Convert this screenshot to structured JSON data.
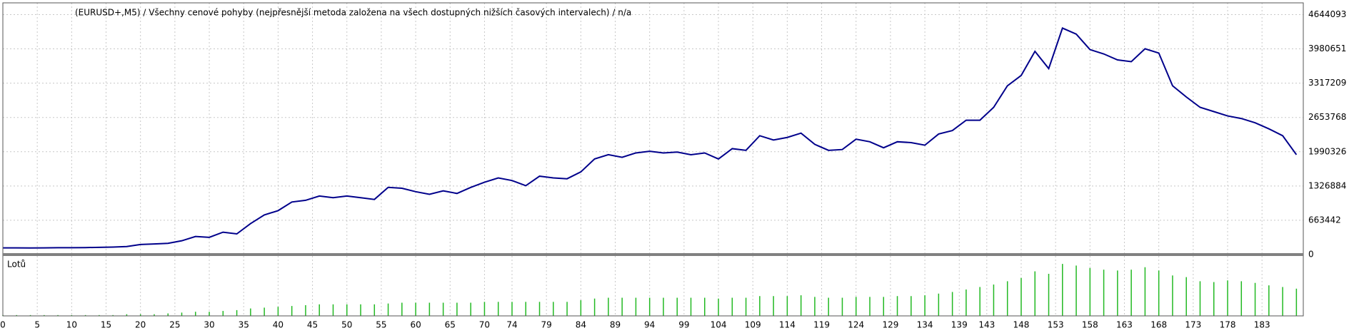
{
  "chart_data": [
    {
      "type": "line",
      "title": "(EURUSD+,M5) / Všechny cenové pohyby (nejpřesnější metoda založena na všech dostupných nižších časových intervalech) / n/a",
      "x": [
        0,
        2,
        4,
        6,
        8,
        10,
        12,
        14,
        16,
        18,
        20,
        22,
        24,
        26,
        28,
        30,
        32,
        34,
        36,
        38,
        40,
        42,
        44,
        46,
        48,
        50,
        52,
        54,
        56,
        58,
        60,
        62,
        64,
        66,
        68,
        70,
        72,
        74,
        76,
        78,
        80,
        82,
        84,
        86,
        88,
        90,
        92,
        94,
        96,
        98,
        100,
        102,
        104,
        106,
        108,
        110,
        112,
        114,
        116,
        118,
        120,
        122,
        124,
        126,
        128,
        130,
        132,
        134,
        136,
        138,
        140,
        142,
        144,
        146,
        148,
        150,
        152,
        154,
        156,
        158,
        160,
        162,
        164,
        166,
        168,
        170,
        172,
        174,
        176,
        178,
        180,
        182,
        184,
        186,
        188
      ],
      "series": [
        {
          "color": "#00008b",
          "values": [
            130000,
            130000,
            128000,
            130000,
            132000,
            133000,
            135000,
            140000,
            145000,
            155000,
            195000,
            205000,
            217000,
            267000,
            350000,
            333000,
            433000,
            400000,
            600000,
            767000,
            850000,
            1017000,
            1050000,
            1133000,
            1100000,
            1133000,
            1100000,
            1067000,
            1300000,
            1283000,
            1217000,
            1167000,
            1233000,
            1183000,
            1300000,
            1400000,
            1483000,
            1433000,
            1333000,
            1517000,
            1483000,
            1467000,
            1600000,
            1850000,
            1933000,
            1883000,
            1967000,
            2000000,
            1967000,
            1983000,
            1933000,
            1967000,
            1850000,
            2050000,
            2017000,
            2300000,
            2217000,
            2267000,
            2350000,
            2133000,
            2017000,
            2033000,
            2233000,
            2183000,
            2067000,
            2183000,
            2167000,
            2117000,
            2333000,
            2400000,
            2600000,
            2600000,
            2850000,
            3267000,
            3467000,
            3933000,
            3600000,
            4383000,
            4267000,
            3967000,
            3883000,
            3767000,
            3733000,
            3983000,
            3900000,
            3267000,
            3050000,
            2850000,
            2767000,
            2683000,
            2633000,
            2550000,
            2433000,
            2300000,
            1933000
          ]
        }
      ],
      "xlim": [
        0,
        189
      ],
      "ylim": [
        0,
        4844000
      ],
      "yticks": [
        0,
        663442,
        1326884,
        1990326,
        2653768,
        3317209,
        3980651,
        4644093
      ],
      "xticks": [
        0,
        5,
        10,
        15,
        20,
        25,
        30,
        35,
        40,
        45,
        50,
        55,
        60,
        65,
        70,
        74,
        79,
        84,
        89,
        94,
        99,
        104,
        109,
        114,
        119,
        124,
        129,
        134,
        139,
        143,
        148,
        153,
        158,
        163,
        168,
        173,
        178,
        183
      ],
      "grid": true
    },
    {
      "type": "bar",
      "title": "Lotů",
      "x": [
        0,
        2,
        4,
        6,
        8,
        10,
        12,
        14,
        16,
        18,
        20,
        22,
        24,
        26,
        28,
        30,
        32,
        34,
        36,
        38,
        40,
        42,
        44,
        46,
        48,
        50,
        52,
        54,
        56,
        58,
        60,
        62,
        64,
        66,
        68,
        70,
        72,
        74,
        76,
        78,
        80,
        82,
        84,
        86,
        88,
        90,
        92,
        94,
        96,
        98,
        100,
        102,
        104,
        106,
        108,
        110,
        112,
        114,
        116,
        118,
        120,
        122,
        124,
        126,
        128,
        130,
        132,
        134,
        136,
        138,
        140,
        142,
        144,
        146,
        148,
        150,
        152,
        154,
        156,
        158,
        160,
        162,
        164,
        166,
        168,
        170,
        172,
        174,
        176,
        178,
        180,
        182,
        184,
        186,
        188
      ],
      "values": [
        0.1,
        0.1,
        0.1,
        0.1,
        0.1,
        0.1,
        0.1,
        0.1,
        0.1,
        0.2,
        0.2,
        0.2,
        0.3,
        0.4,
        0.5,
        0.5,
        0.6,
        0.7,
        0.9,
        1.0,
        1.1,
        1.2,
        1.3,
        1.4,
        1.4,
        1.4,
        1.4,
        1.4,
        1.5,
        1.6,
        1.6,
        1.6,
        1.6,
        1.6,
        1.6,
        1.7,
        1.7,
        1.7,
        1.7,
        1.7,
        1.7,
        1.7,
        1.9,
        2.1,
        2.2,
        2.2,
        2.2,
        2.2,
        2.2,
        2.2,
        2.2,
        2.2,
        2.1,
        2.2,
        2.2,
        2.4,
        2.4,
        2.4,
        2.5,
        2.3,
        2.2,
        2.2,
        2.3,
        2.3,
        2.3,
        2.4,
        2.4,
        2.5,
        2.7,
        2.9,
        3.2,
        3.5,
        3.8,
        4.2,
        4.6,
        5.4,
        5.1,
        6.3,
        6.1,
        5.8,
        5.6,
        5.5,
        5.6,
        5.9,
        5.5,
        4.9,
        4.7,
        4.2,
        4.1,
        4.3,
        4.2,
        4.0,
        3.7,
        3.5,
        3.3
      ],
      "color": "#22b922",
      "xlim": [
        0,
        189
      ],
      "ylim": [
        0,
        7
      ]
    }
  ]
}
